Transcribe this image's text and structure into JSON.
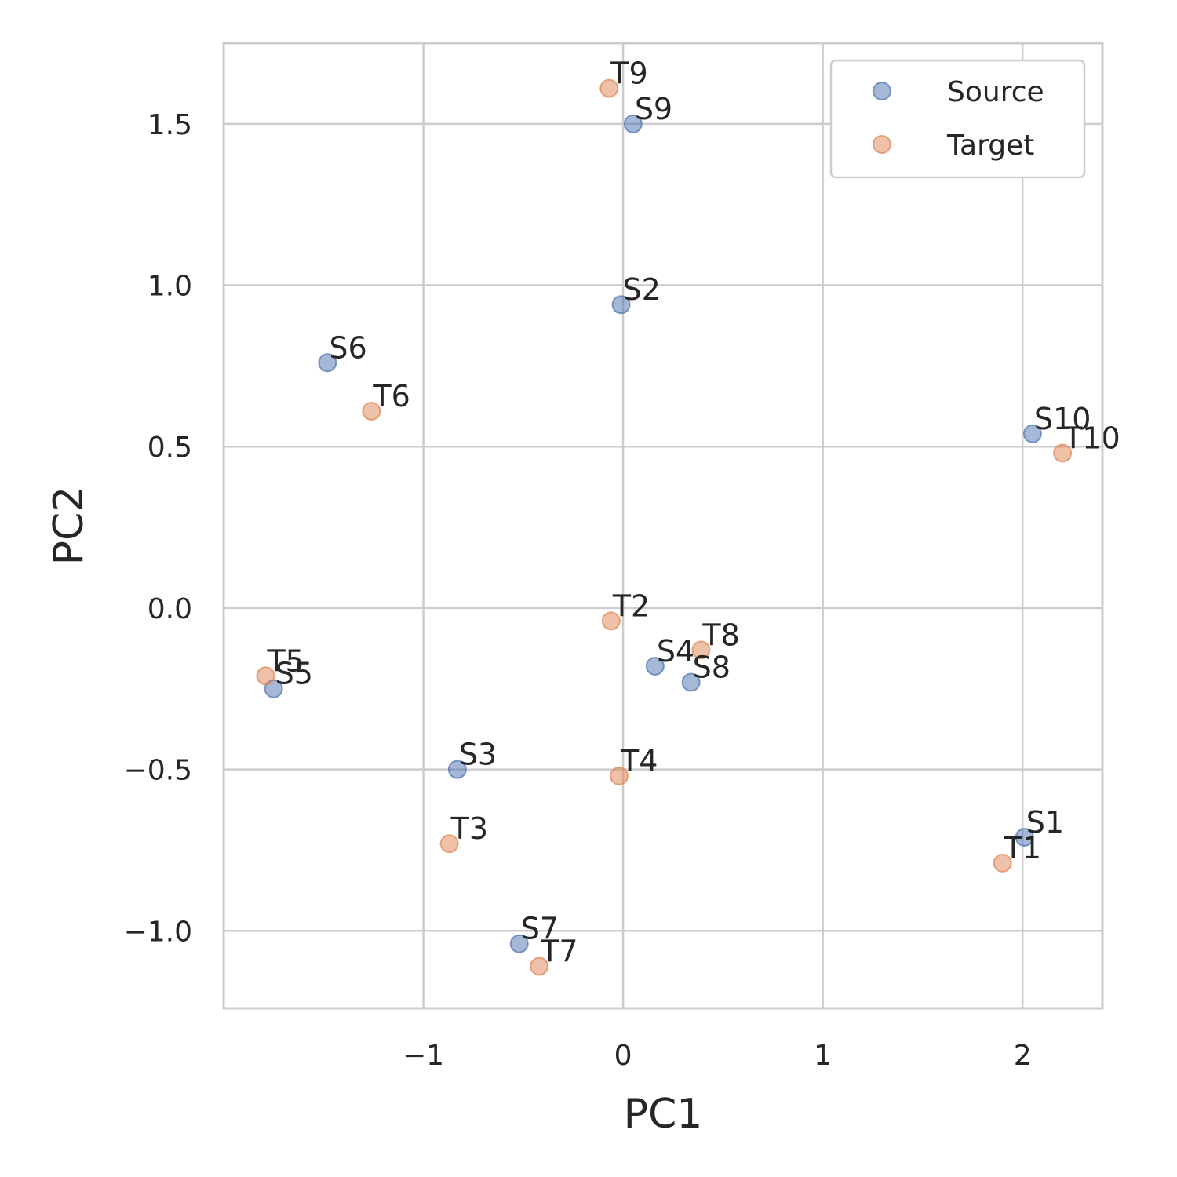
{
  "chart_data": {
    "type": "scatter",
    "xlabel": "PC1",
    "ylabel": "PC2",
    "xlim": [
      -2.0,
      2.4
    ],
    "ylim": [
      -1.24,
      1.75
    ],
    "xticks": [
      {
        "value": -1,
        "label": "−1"
      },
      {
        "value": 0,
        "label": "0"
      },
      {
        "value": 1,
        "label": "1"
      },
      {
        "value": 2,
        "label": "2"
      }
    ],
    "yticks": [
      {
        "value": -1.0,
        "label": "−1.0"
      },
      {
        "value": -0.5,
        "label": "−0.5"
      },
      {
        "value": 0.0,
        "label": "0.0"
      },
      {
        "value": 0.5,
        "label": "0.5"
      },
      {
        "value": 1.0,
        "label": "1.0"
      },
      {
        "value": 1.5,
        "label": "1.5"
      }
    ],
    "grid": true,
    "legend_position": "top-right",
    "series": [
      {
        "name": "Source",
        "color": "#4c72b0",
        "points": [
          {
            "label": "S1",
            "x": 2.01,
            "y": -0.71
          },
          {
            "label": "S2",
            "x": -0.01,
            "y": 0.94
          },
          {
            "label": "S3",
            "x": -0.83,
            "y": -0.5
          },
          {
            "label": "S4",
            "x": 0.16,
            "y": -0.18
          },
          {
            "label": "S5",
            "x": -1.75,
            "y": -0.25
          },
          {
            "label": "S6",
            "x": -1.48,
            "y": 0.76
          },
          {
            "label": "S7",
            "x": -0.52,
            "y": -1.04
          },
          {
            "label": "S8",
            "x": 0.34,
            "y": -0.23
          },
          {
            "label": "S9",
            "x": 0.05,
            "y": 1.5
          },
          {
            "label": "S10",
            "x": 2.05,
            "y": 0.54
          }
        ]
      },
      {
        "name": "Target",
        "color": "#dd8452",
        "points": [
          {
            "label": "T1",
            "x": 1.9,
            "y": -0.79
          },
          {
            "label": "T2",
            "x": -0.06,
            "y": -0.04
          },
          {
            "label": "T3",
            "x": -0.87,
            "y": -0.73
          },
          {
            "label": "T4",
            "x": -0.02,
            "y": -0.52
          },
          {
            "label": "T5",
            "x": -1.79,
            "y": -0.21
          },
          {
            "label": "T6",
            "x": -1.26,
            "y": 0.61
          },
          {
            "label": "T7",
            "x": -0.42,
            "y": -1.11
          },
          {
            "label": "T8",
            "x": 0.39,
            "y": -0.13
          },
          {
            "label": "T9",
            "x": -0.07,
            "y": 1.61
          },
          {
            "label": "T10",
            "x": 2.2,
            "y": 0.48
          }
        ]
      }
    ]
  }
}
